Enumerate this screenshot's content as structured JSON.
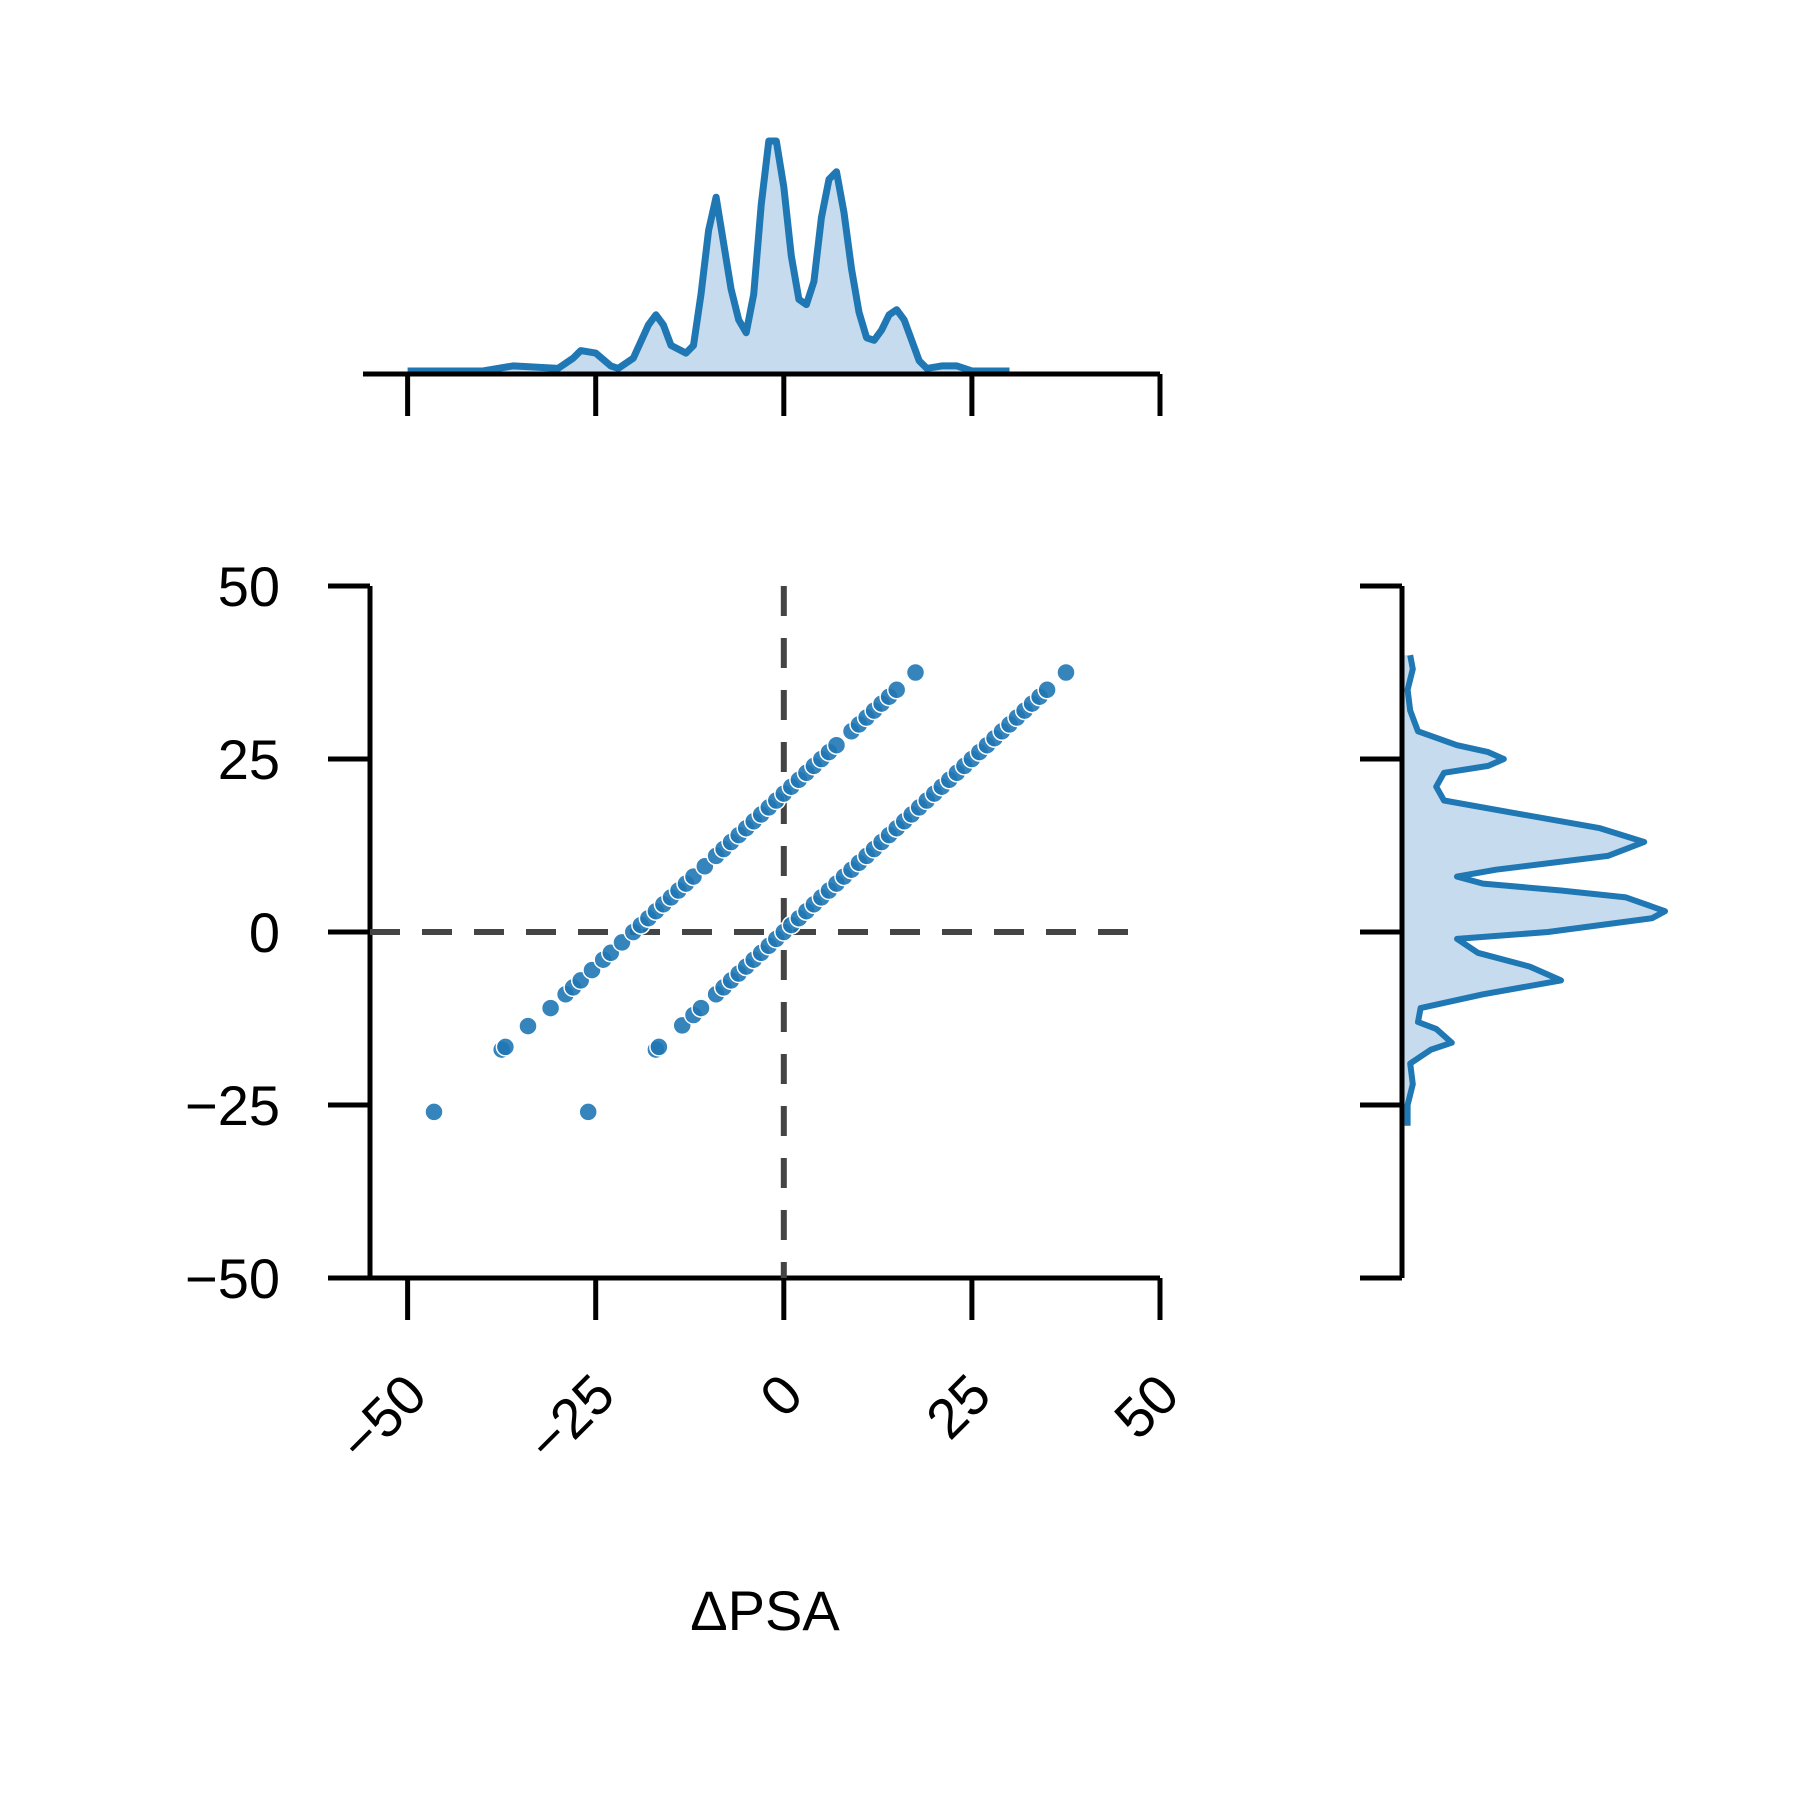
{
  "chart_data": {
    "type": "scatter",
    "xlabel": "ΔPSA",
    "ylabel": "",
    "xlim": [
      -55,
      50
    ],
    "ylim": [
      -50,
      50
    ],
    "xticks": [
      -50,
      -25,
      0,
      25,
      50
    ],
    "yticks": [
      50,
      25,
      0,
      -25,
      -50
    ],
    "xtick_labels": [
      "−50",
      "−25",
      "0",
      "25",
      "50"
    ],
    "ytick_labels": [
      "50",
      "25",
      "0",
      "−25",
      "−50"
    ],
    "reference_lines": {
      "x": 0,
      "y": 0,
      "style": "dashed",
      "color": "#444444"
    },
    "marker_color": "#1f77b4",
    "series": [
      {
        "points": [
          [
            -46.5,
            -26
          ],
          [
            -26,
            -26
          ],
          [
            -37.5,
            -17
          ],
          [
            -37,
            -16.6
          ],
          [
            -34,
            -13.6
          ],
          [
            -31,
            -11
          ],
          [
            -29,
            -9
          ],
          [
            -28,
            -8
          ],
          [
            -27,
            -7
          ],
          [
            -25.5,
            -5.5
          ],
          [
            -24,
            -4
          ],
          [
            -23,
            -3
          ],
          [
            -21.5,
            -1.5
          ],
          [
            -20,
            0
          ],
          [
            -19,
            1
          ],
          [
            -18,
            2
          ],
          [
            -17,
            3
          ],
          [
            -16,
            4
          ],
          [
            -15,
            5
          ],
          [
            -14,
            6
          ],
          [
            -13,
            7
          ],
          [
            -12,
            8
          ],
          [
            -10.5,
            9.5
          ],
          [
            -9,
            11
          ],
          [
            -8,
            12
          ],
          [
            -7,
            13
          ],
          [
            -6,
            14
          ],
          [
            -5,
            15
          ],
          [
            -4,
            16
          ],
          [
            -3,
            17
          ],
          [
            -2,
            18
          ],
          [
            -1,
            19
          ],
          [
            0,
            20
          ],
          [
            1,
            21
          ],
          [
            2,
            22
          ],
          [
            3,
            23
          ],
          [
            4,
            24
          ],
          [
            5,
            25
          ],
          [
            6,
            26
          ],
          [
            7,
            27
          ],
          [
            9,
            29
          ],
          [
            10,
            30
          ],
          [
            11,
            31
          ],
          [
            12,
            32
          ],
          [
            13,
            33
          ],
          [
            14,
            34
          ],
          [
            15,
            35
          ],
          [
            17.5,
            37.5
          ],
          [
            -17,
            -17
          ],
          [
            -16.6,
            -16.6
          ],
          [
            -13.5,
            -13.5
          ],
          [
            -12,
            -12
          ],
          [
            -11,
            -11
          ],
          [
            -9,
            -9
          ],
          [
            -8,
            -8
          ],
          [
            -7,
            -7
          ],
          [
            -6,
            -6
          ],
          [
            -5,
            -5
          ],
          [
            -4,
            -4
          ],
          [
            -3,
            -3
          ],
          [
            -2,
            -2
          ],
          [
            -1,
            -1
          ],
          [
            0,
            0
          ],
          [
            1,
            1
          ],
          [
            2,
            2
          ],
          [
            3,
            3
          ],
          [
            4,
            4
          ],
          [
            5,
            5
          ],
          [
            6,
            6
          ],
          [
            7,
            7
          ],
          [
            8,
            8
          ],
          [
            9,
            9
          ],
          [
            10,
            10
          ],
          [
            11,
            11
          ],
          [
            12,
            12
          ],
          [
            13,
            13
          ],
          [
            14,
            14
          ],
          [
            15,
            15
          ],
          [
            16,
            16
          ],
          [
            17,
            17
          ],
          [
            18,
            18
          ],
          [
            19,
            19
          ],
          [
            20,
            20
          ],
          [
            21,
            21
          ],
          [
            22,
            22
          ],
          [
            23,
            23
          ],
          [
            24,
            24
          ],
          [
            25,
            25
          ],
          [
            26,
            26
          ],
          [
            27,
            27
          ],
          [
            28,
            28
          ],
          [
            29,
            29
          ],
          [
            30,
            30
          ],
          [
            31,
            31
          ],
          [
            32,
            32
          ],
          [
            33,
            33
          ],
          [
            34,
            34
          ],
          [
            35,
            35
          ],
          [
            37.5,
            37.5
          ]
        ]
      }
    ],
    "x_density": [
      [
        -50,
        0
      ],
      [
        -40,
        0.0
      ],
      [
        -36,
        0.02
      ],
      [
        -30,
        0.01
      ],
      [
        -28,
        0.05
      ],
      [
        -27,
        0.08
      ],
      [
        -25,
        0.07
      ],
      [
        -23,
        0.02
      ],
      [
        -22,
        0.01
      ],
      [
        -20,
        0.05
      ],
      [
        -18,
        0.18
      ],
      [
        -17,
        0.22
      ],
      [
        -16,
        0.18
      ],
      [
        -15,
        0.1
      ],
      [
        -13,
        0.07
      ],
      [
        -12,
        0.1
      ],
      [
        -11,
        0.3
      ],
      [
        -10,
        0.55
      ],
      [
        -9,
        0.68
      ],
      [
        -8,
        0.5
      ],
      [
        -7,
        0.32
      ],
      [
        -6,
        0.2
      ],
      [
        -5,
        0.15
      ],
      [
        -4,
        0.3
      ],
      [
        -3,
        0.65
      ],
      [
        -2,
        0.9
      ],
      [
        -1,
        0.9
      ],
      [
        0,
        0.72
      ],
      [
        1,
        0.45
      ],
      [
        2,
        0.28
      ],
      [
        3,
        0.26
      ],
      [
        4,
        0.35
      ],
      [
        5,
        0.6
      ],
      [
        6,
        0.75
      ],
      [
        7,
        0.78
      ],
      [
        8,
        0.62
      ],
      [
        9,
        0.4
      ],
      [
        10,
        0.23
      ],
      [
        11,
        0.13
      ],
      [
        12,
        0.12
      ],
      [
        13,
        0.16
      ],
      [
        14,
        0.22
      ],
      [
        15,
        0.24
      ],
      [
        16,
        0.2
      ],
      [
        17,
        0.12
      ],
      [
        18,
        0.04
      ],
      [
        19,
        0.01
      ],
      [
        21,
        0.02
      ],
      [
        23,
        0.02
      ],
      [
        25,
        0.0
      ],
      [
        30,
        0.0
      ]
    ],
    "y_density": [
      [
        40,
        0.02
      ],
      [
        38,
        0.03
      ],
      [
        35,
        0.01
      ],
      [
        32,
        0.02
      ],
      [
        29,
        0.05
      ],
      [
        27,
        0.2
      ],
      [
        26,
        0.32
      ],
      [
        25,
        0.38
      ],
      [
        24,
        0.32
      ],
      [
        23,
        0.15
      ],
      [
        21,
        0.12
      ],
      [
        19,
        0.15
      ],
      [
        17,
        0.45
      ],
      [
        15,
        0.75
      ],
      [
        13,
        0.92
      ],
      [
        11,
        0.78
      ],
      [
        9,
        0.35
      ],
      [
        8,
        0.2
      ],
      [
        7,
        0.3
      ],
      [
        6,
        0.6
      ],
      [
        5,
        0.85
      ],
      [
        3,
        1.0
      ],
      [
        2,
        0.95
      ],
      [
        0,
        0.55
      ],
      [
        -1,
        0.2
      ],
      [
        -3,
        0.28
      ],
      [
        -5,
        0.48
      ],
      [
        -7,
        0.6
      ],
      [
        -9,
        0.3
      ],
      [
        -11,
        0.06
      ],
      [
        -13,
        0.05
      ],
      [
        -14,
        0.12
      ],
      [
        -16,
        0.18
      ],
      [
        -17,
        0.1
      ],
      [
        -19,
        0.02
      ],
      [
        -22,
        0.03
      ],
      [
        -25,
        0.01
      ],
      [
        -28,
        0.01
      ]
    ]
  }
}
